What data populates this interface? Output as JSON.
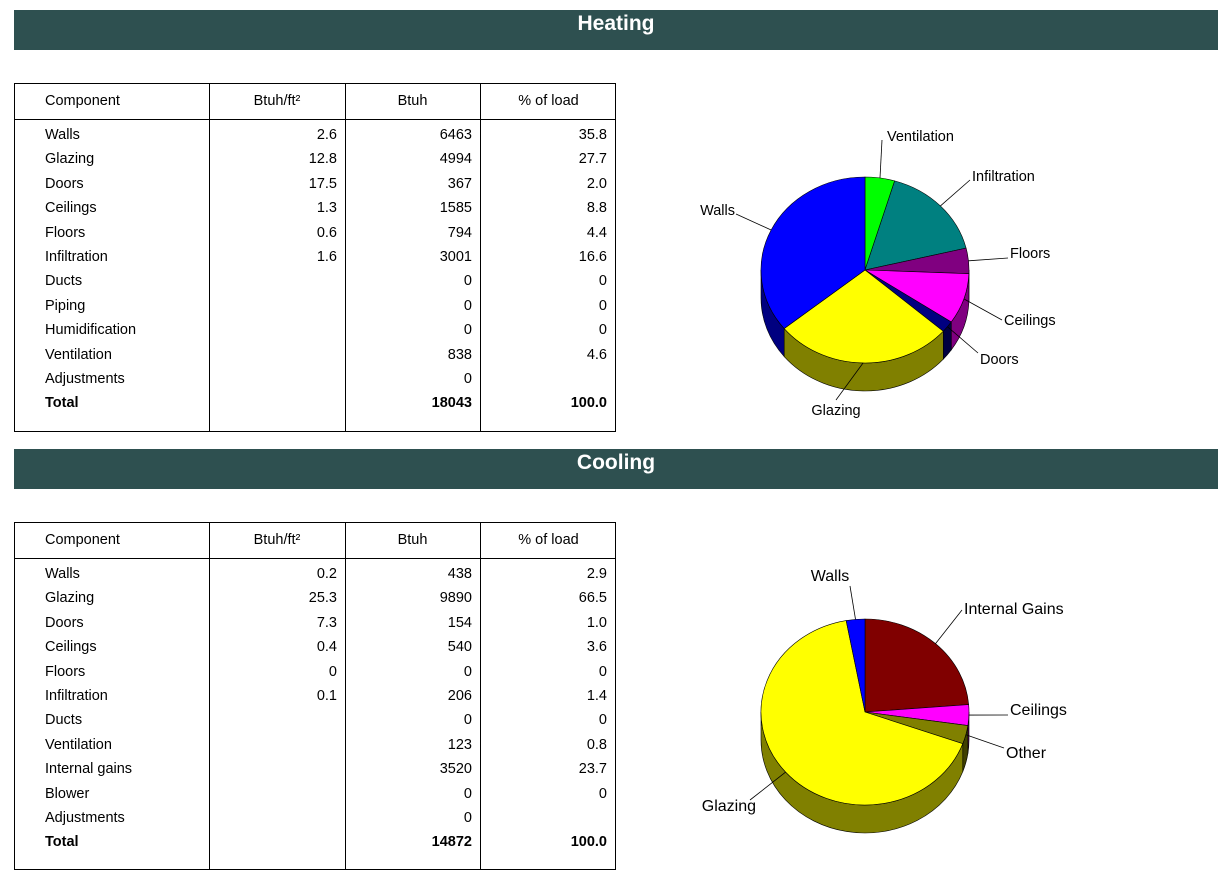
{
  "heating": {
    "title": "Heating",
    "columns": [
      "Component",
      "Btuh/ft²",
      "Btuh",
      "% of load"
    ],
    "rows": [
      [
        "Walls",
        "2.6",
        "6463",
        "35.8"
      ],
      [
        "Glazing",
        "12.8",
        "4994",
        "27.7"
      ],
      [
        "Doors",
        "17.5",
        "367",
        "2.0"
      ],
      [
        "Ceilings",
        "1.3",
        "1585",
        "8.8"
      ],
      [
        "Floors",
        "0.6",
        "794",
        "4.4"
      ],
      [
        "Infiltration",
        "1.6",
        "3001",
        "16.6"
      ],
      [
        "Ducts",
        "",
        "0",
        "0"
      ],
      [
        "Piping",
        "",
        "0",
        "0"
      ],
      [
        "Humidification",
        "",
        "0",
        "0"
      ],
      [
        "Ventilation",
        "",
        "838",
        "4.6"
      ],
      [
        "Adjustments",
        "",
        "0",
        ""
      ]
    ],
    "total": [
      "Total",
      "",
      "18043",
      "100.0"
    ]
  },
  "cooling": {
    "title": "Cooling",
    "columns": [
      "Component",
      "Btuh/ft²",
      "Btuh",
      "% of load"
    ],
    "rows": [
      [
        "Walls",
        "0.2",
        "438",
        "2.9"
      ],
      [
        "Glazing",
        "25.3",
        "9890",
        "66.5"
      ],
      [
        "Doors",
        "7.3",
        "154",
        "1.0"
      ],
      [
        "Ceilings",
        "0.4",
        "540",
        "3.6"
      ],
      [
        "Floors",
        "0",
        "0",
        "0"
      ],
      [
        "Infiltration",
        "0.1",
        "206",
        "1.4"
      ],
      [
        "Ducts",
        "",
        "0",
        "0"
      ],
      [
        "Ventilation",
        "",
        "123",
        "0.8"
      ],
      [
        "Internal gains",
        "",
        "3520",
        "23.7"
      ],
      [
        "Blower",
        "",
        "0",
        "0"
      ],
      [
        "Adjustments",
        "",
        "0",
        ""
      ]
    ],
    "total": [
      "Total",
      "",
      "14872",
      "100.0"
    ]
  },
  "chart_data": [
    {
      "type": "pie",
      "slices": [
        {
          "label": "Ventilation",
          "value": 4.6,
          "color": "#00ff00"
        },
        {
          "label": "Infiltration",
          "value": 16.6,
          "color": "#008080"
        },
        {
          "label": "Floors",
          "value": 4.4,
          "color": "#800080"
        },
        {
          "label": "Ceilings",
          "value": 8.8,
          "color": "#ff00ff"
        },
        {
          "label": "Doors",
          "value": 2.0,
          "color": "#000080"
        },
        {
          "label": "Glazing",
          "value": 27.7,
          "color": "#ffff00"
        },
        {
          "label": "Walls",
          "value": 35.8,
          "color": "#0000ff"
        }
      ]
    },
    {
      "type": "pie",
      "slices": [
        {
          "label": "Internal Gains",
          "value": 23.7,
          "color": "#800000"
        },
        {
          "label": "Ceilings",
          "value": 3.6,
          "color": "#ff00ff"
        },
        {
          "label": "Other",
          "value": 3.2,
          "color": "#808000"
        },
        {
          "label": "Glazing",
          "value": 66.5,
          "color": "#ffff00"
        },
        {
          "label": "Walls",
          "value": 2.9,
          "color": "#0000ff"
        }
      ]
    }
  ]
}
